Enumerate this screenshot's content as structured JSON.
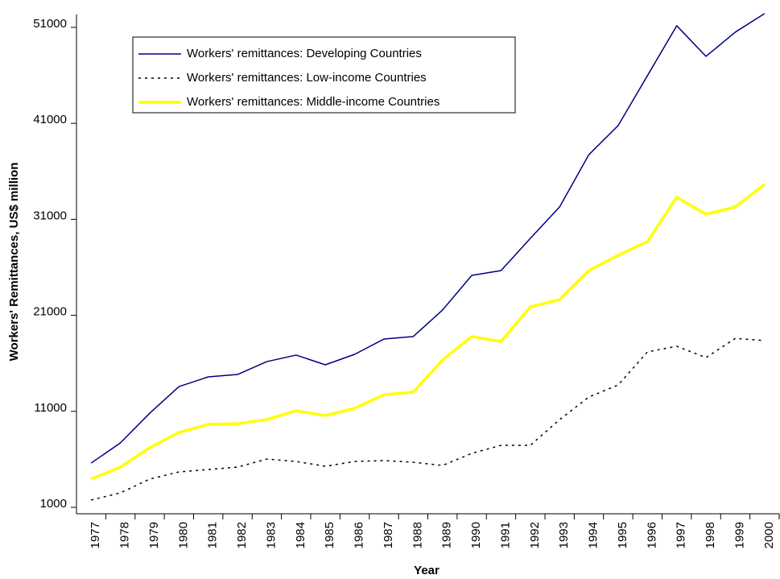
{
  "chart_data": {
    "type": "line",
    "x_label": "Year",
    "y_label": "Workers' Remittances, US$ million",
    "categories": [
      "1977",
      "1978",
      "1979",
      "1980",
      "1981",
      "1982",
      "1983",
      "1984",
      "1985",
      "1986",
      "1987",
      "1988",
      "1989",
      "1990",
      "1991",
      "1992",
      "1993",
      "1994",
      "1995",
      "1996",
      "1997",
      "1998",
      "1999",
      "2000"
    ],
    "series": [
      {
        "name": "Workers' remittances: Developing Countries",
        "color": "#000080",
        "linestyle": "solid",
        "linewidth": 1.5,
        "values": [
          5610,
          7710,
          10800,
          13580,
          14590,
          14840,
          16180,
          16860,
          15850,
          16940,
          18530,
          18790,
          21550,
          25160,
          25660,
          29020,
          32290,
          37740,
          40770,
          45970,
          51170,
          47980,
          50500,
          52430
        ]
      },
      {
        "name": "Workers' remittances: Low-income Countries",
        "color": "#000000",
        "linestyle": "dotted",
        "linewidth": 1.5,
        "values": [
          1760,
          2510,
          3940,
          4690,
          4940,
          5190,
          6030,
          5780,
          5280,
          5780,
          5870,
          5700,
          5360,
          6620,
          7460,
          7460,
          10140,
          12490,
          13750,
          17190,
          17780,
          16600,
          18600,
          18370
        ]
      },
      {
        "name": "Workers' remittances: Middle-income Countries",
        "color": "#ffff00",
        "linestyle": "solid",
        "linewidth": 3.5,
        "values": [
          3940,
          5190,
          7210,
          8800,
          9640,
          9720,
          10140,
          11070,
          10560,
          11320,
          12740,
          13000,
          16350,
          18790,
          18280,
          21890,
          22640,
          25660,
          27260,
          28680,
          33300,
          31540,
          32290,
          34640
        ]
      }
    ],
    "ylim": [
      330,
      52340
    ],
    "yticks": [
      1000,
      11000,
      21000,
      31000,
      41000,
      51000
    ],
    "grid": false,
    "legend": "upper left"
  }
}
